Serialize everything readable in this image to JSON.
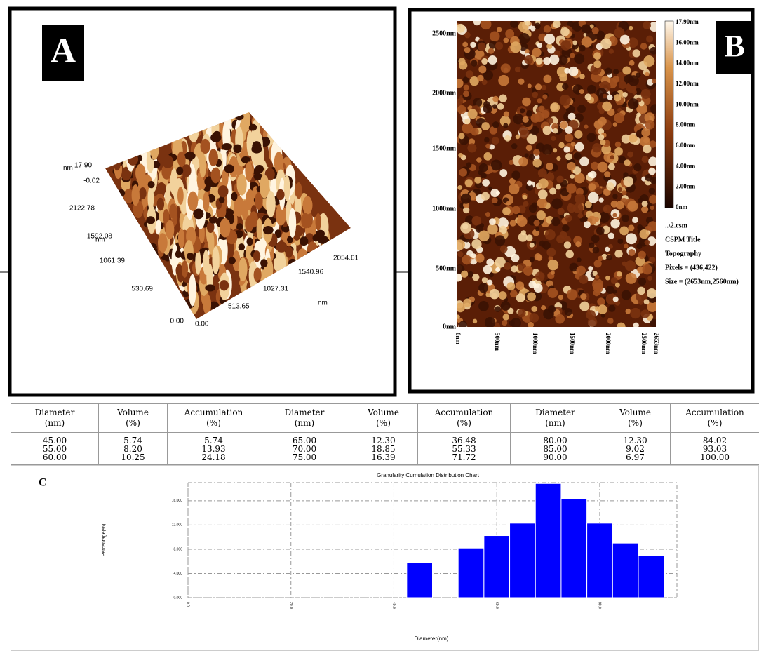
{
  "panel_a": {
    "label": "A",
    "z_unit": "nm",
    "z_max": "17.90",
    "z_min": "-0.02",
    "y_unit": "nm",
    "y_ticks": [
      "2122.78",
      "1592.08",
      "1061.39",
      "530.69",
      "0.00"
    ],
    "x_unit": "nm",
    "x_ticks": [
      "0.00",
      "513.65",
      "1027.31",
      "1540.96",
      "2054.61"
    ]
  },
  "panel_b": {
    "label": "B",
    "y_ticks": [
      "2500nm",
      "2000nm",
      "1500nm",
      "1000nm",
      "500nm",
      "0nm"
    ],
    "x_ticks": [
      "0nm",
      "500nm",
      "1000nm",
      "1500nm",
      "2000nm",
      "2500nm",
      "2653nm"
    ],
    "colorbar": [
      "17.90nm",
      "16.00nm",
      "14.00nm",
      "12.00nm",
      "10.00nm",
      "8.00nm",
      "6.00nm",
      "4.00nm",
      "2.00nm",
      "0nm"
    ],
    "info": [
      "..\\2.csm",
      "CSPM Title",
      "Topography",
      "Pixels = (436,422)",
      "Size = (2653nm,2560nm)"
    ]
  },
  "table": {
    "header": [
      [
        "Diameter",
        "(nm)"
      ],
      [
        "Volume",
        "(%)"
      ],
      [
        "Accumulation",
        "(%)"
      ],
      [
        "Diameter",
        "(nm)"
      ],
      [
        "Volume",
        "(%)"
      ],
      [
        "Accumulation",
        "(%)"
      ],
      [
        "Diameter",
        "(nm)"
      ],
      [
        "Volume",
        "(%)"
      ],
      [
        "Accumulation",
        "(%)"
      ]
    ],
    "rows": [
      [
        "45.00",
        "5.74",
        "5.74",
        "65.00",
        "12.30",
        "36.48",
        "80.00",
        "12.30",
        "84.02"
      ],
      [
        "55.00",
        "8.20",
        "13.93",
        "70.00",
        "18.85",
        "55.33",
        "85.00",
        "9.02",
        "93.03"
      ],
      [
        "60.00",
        "10.25",
        "24.18",
        "75.00",
        "16.39",
        "71.72",
        "90.00",
        "6.97",
        "100.00"
      ]
    ]
  },
  "chart_data": {
    "type": "bar",
    "label": "C",
    "title": "Granularity Cumulation Distribution Chart",
    "y_label": "Percentage(%)",
    "x_label": "Diameter(nm)",
    "x": [
      45,
      55,
      60,
      65,
      70,
      75,
      80,
      85,
      90
    ],
    "values": [
      5.74,
      8.2,
      10.25,
      12.3,
      18.85,
      16.39,
      12.3,
      9.02,
      6.97
    ],
    "color": "#0000ff",
    "xlim": [
      0,
      95
    ],
    "xticks": [
      {
        "value": 0,
        "label": "0.0"
      },
      {
        "value": 20,
        "label": "20.0"
      },
      {
        "value": 40,
        "label": "40.0"
      },
      {
        "value": 60,
        "label": "60.0"
      },
      {
        "value": 80,
        "label": "80.0"
      }
    ],
    "ylim": [
      0,
      19
    ],
    "yticks": [
      {
        "value": 0,
        "label": "0.000"
      },
      {
        "value": 4,
        "label": "4.000"
      },
      {
        "value": 8,
        "label": "8.000"
      },
      {
        "value": 12,
        "label": "12.000"
      },
      {
        "value": 16,
        "label": "16.000"
      }
    ],
    "grid": true
  }
}
